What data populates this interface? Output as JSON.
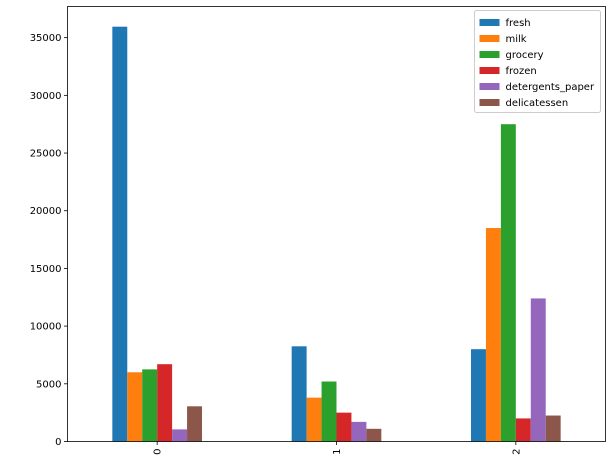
{
  "chart_data": {
    "type": "bar",
    "categories": [
      "0",
      "1",
      "2"
    ],
    "series": [
      {
        "name": "fresh",
        "color": "#1f77b4",
        "values": [
          35950,
          8250,
          8000
        ]
      },
      {
        "name": "milk",
        "color": "#ff7f0e",
        "values": [
          6000,
          3800,
          18500
        ]
      },
      {
        "name": "grocery",
        "color": "#2ca02c",
        "values": [
          6250,
          5200,
          27500
        ]
      },
      {
        "name": "frozen",
        "color": "#d62728",
        "values": [
          6700,
          2500,
          2000
        ]
      },
      {
        "name": "detergents_paper",
        "color": "#9467bd",
        "values": [
          1050,
          1700,
          12400
        ]
      },
      {
        "name": "delicatessen",
        "color": "#8c564b",
        "values": [
          3050,
          1100,
          2250
        ]
      }
    ],
    "yticks": [
      0,
      5000,
      10000,
      15000,
      20000,
      25000,
      30000,
      35000
    ],
    "ylim": [
      0,
      37700
    ],
    "xlabel": "",
    "ylabel": "",
    "title": "",
    "legend": "top-right",
    "grid": false
  }
}
